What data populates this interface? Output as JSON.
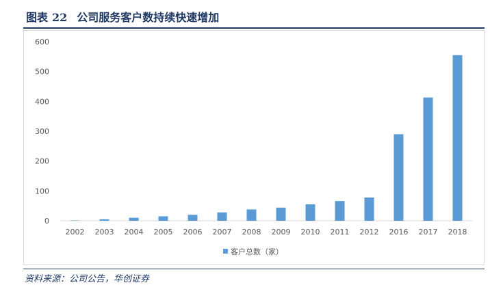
{
  "figure": {
    "label": "图表",
    "number": "22",
    "title": "公司服务客户数持续快速增加"
  },
  "source": "资料来源：公司公告，华创证券",
  "colors": {
    "bar": "#5b9bd5",
    "axis": "#d9d9d9",
    "text": "#595959",
    "heading": "#1f3864"
  },
  "chart_data": {
    "type": "bar",
    "categories": [
      "2002",
      "2003",
      "2004",
      "2005",
      "2006",
      "2007",
      "2008",
      "2009",
      "2010",
      "2011",
      "2012",
      "2016",
      "2017",
      "2018"
    ],
    "series": [
      {
        "name": "客户总数（家）",
        "values": [
          1,
          5,
          10,
          15,
          20,
          28,
          38,
          44,
          55,
          66,
          78,
          290,
          413,
          555
        ]
      }
    ],
    "ylim": [
      0,
      600
    ],
    "yticks": [
      0,
      100,
      200,
      300,
      400,
      500,
      600
    ],
    "grid": false,
    "legend": "bottom-center"
  }
}
